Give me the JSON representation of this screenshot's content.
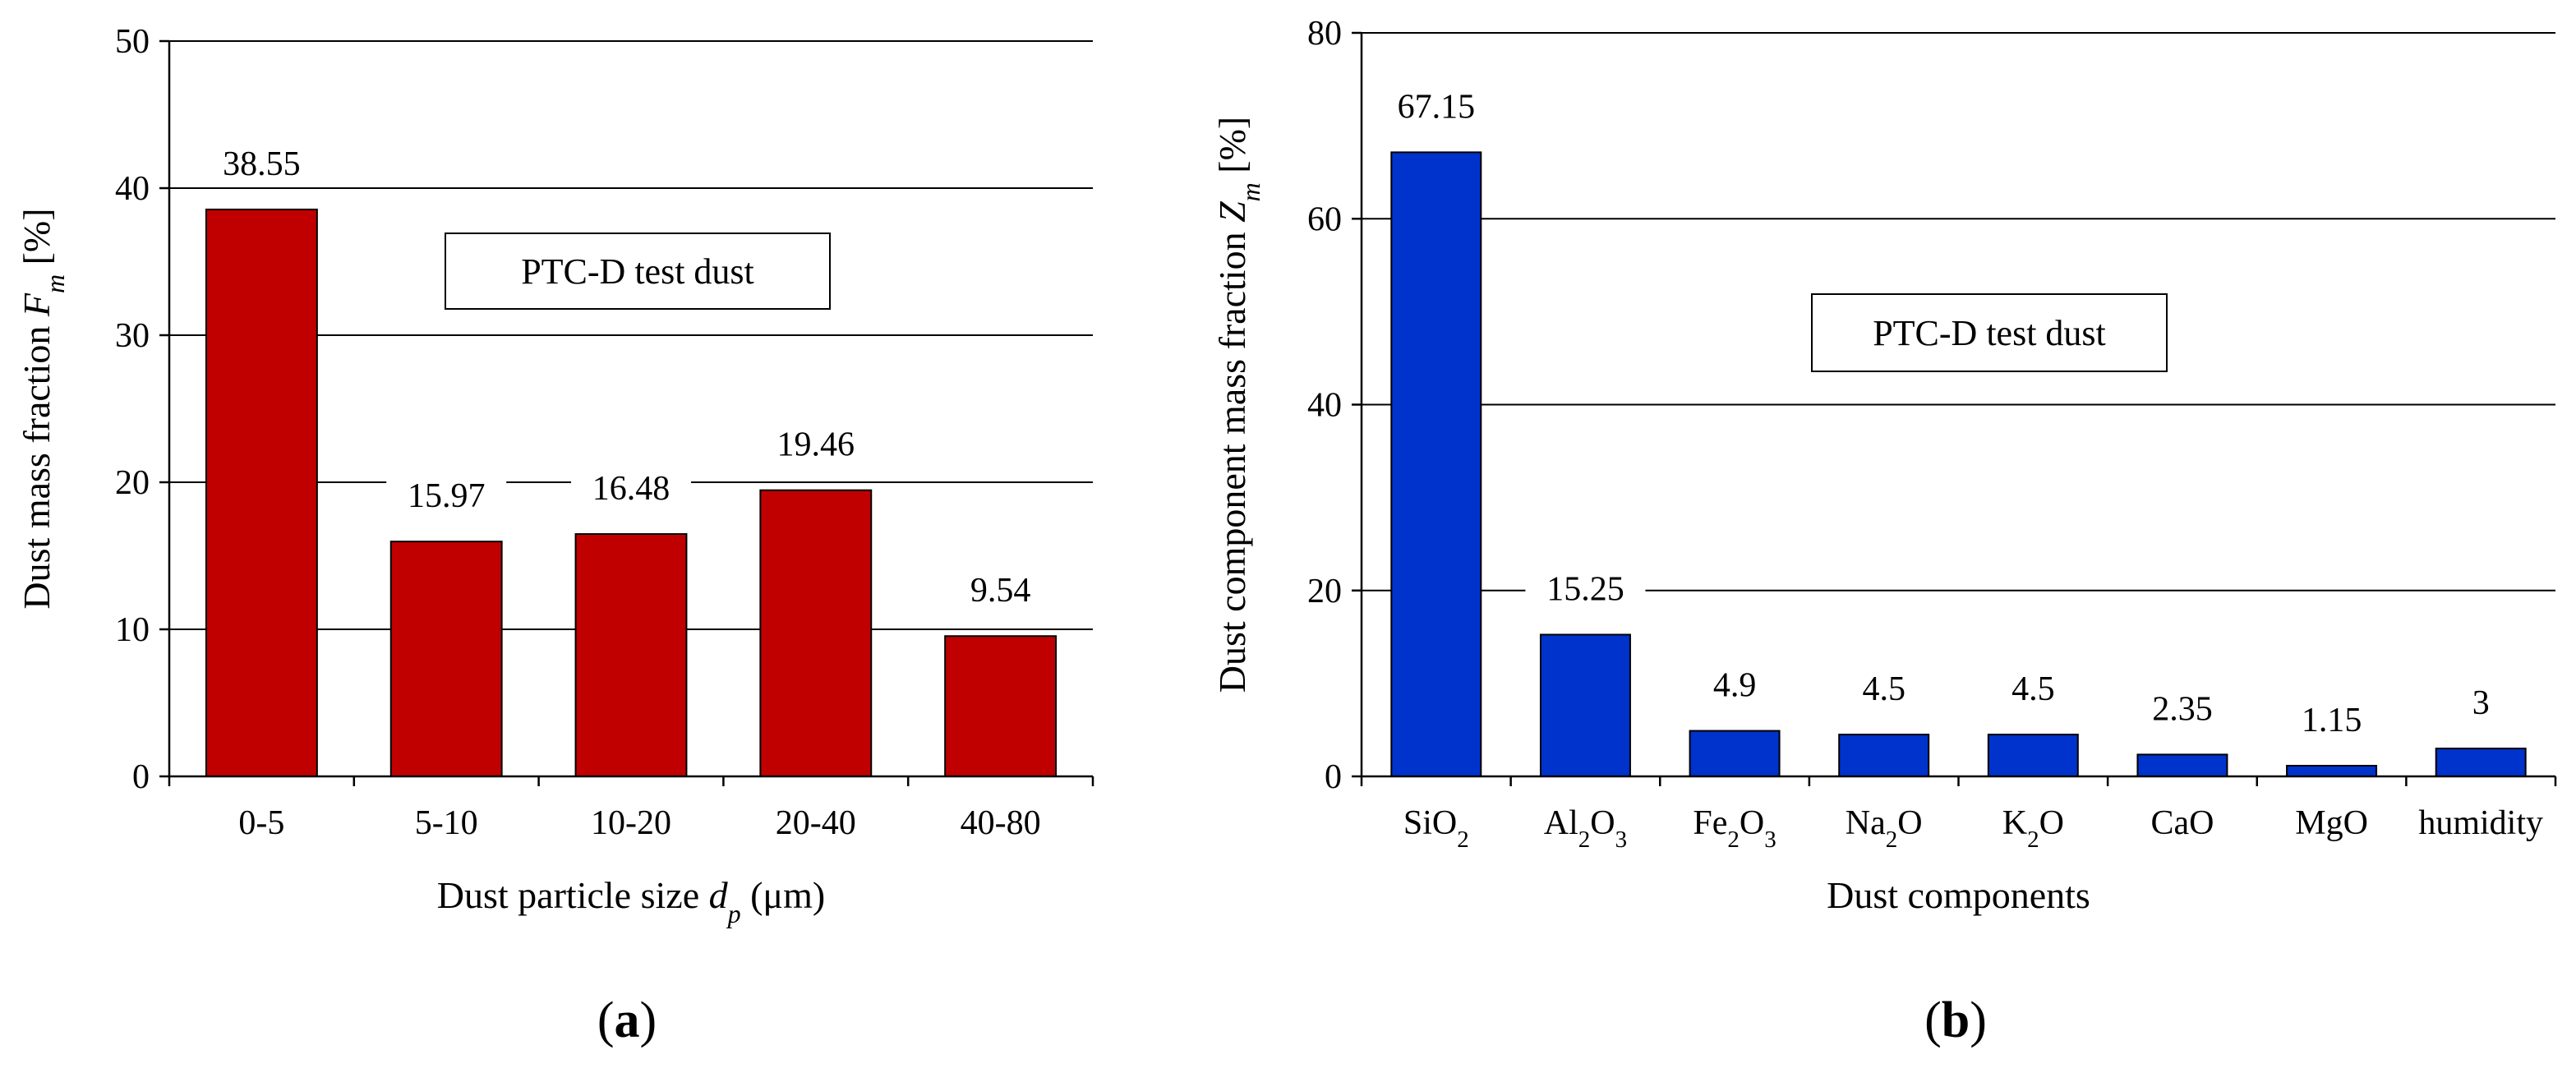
{
  "chart_data": [
    {
      "type": "bar",
      "panel": "(a)",
      "panel_letter": "a",
      "title": "",
      "box_label": "PTC-D test dust",
      "xlabel": "Dust particle size d_p (μm)",
      "xlabel_parts": {
        "prefix": "Dust particle size ",
        "var": "d",
        "sub": "p",
        "suffix": " (μm)"
      },
      "ylabel": "Dust mass fraction F_m [%]",
      "ylabel_parts": {
        "prefix": "Dust mass fraction ",
        "var": "F",
        "sub": "m",
        "suffix": " [%]"
      },
      "categories": [
        "0-5",
        "5-10",
        "10-20",
        "20-40",
        "40-80"
      ],
      "values": [
        38.55,
        15.97,
        16.48,
        19.46,
        9.54
      ],
      "value_labels": [
        "38.55",
        "15.97",
        "16.48",
        "19.46",
        "9.54"
      ],
      "yticks": [
        0,
        10,
        20,
        30,
        40,
        50
      ],
      "ylim": [
        0,
        50
      ],
      "grid": true,
      "bar_color": "#c00000"
    },
    {
      "type": "bar",
      "panel": "(b)",
      "panel_letter": "b",
      "title": "",
      "box_label": "PTC-D test dust",
      "xlabel": "Dust components",
      "ylabel": "Dust component mass fraction Z_m [%]",
      "ylabel_parts": {
        "prefix": "Dust component mass fraction ",
        "var": "Z",
        "sub": "m",
        "suffix": " [%]"
      },
      "categories": [
        "SiO2",
        "Al2O3",
        "Fe2O3",
        "Na2O",
        "K2O",
        "CaO",
        "MgO",
        "humidity"
      ],
      "values": [
        67.15,
        15.25,
        4.9,
        4.5,
        4.5,
        2.35,
        1.15,
        3
      ],
      "value_labels": [
        "67.15",
        "15.25",
        "4.9",
        "4.5",
        "4.5",
        "2.35",
        "1.15",
        "3"
      ],
      "yticks": [
        0,
        20,
        40,
        60,
        80
      ],
      "ylim": [
        0,
        80
      ],
      "grid": true,
      "bar_color": "#0033cc"
    }
  ]
}
